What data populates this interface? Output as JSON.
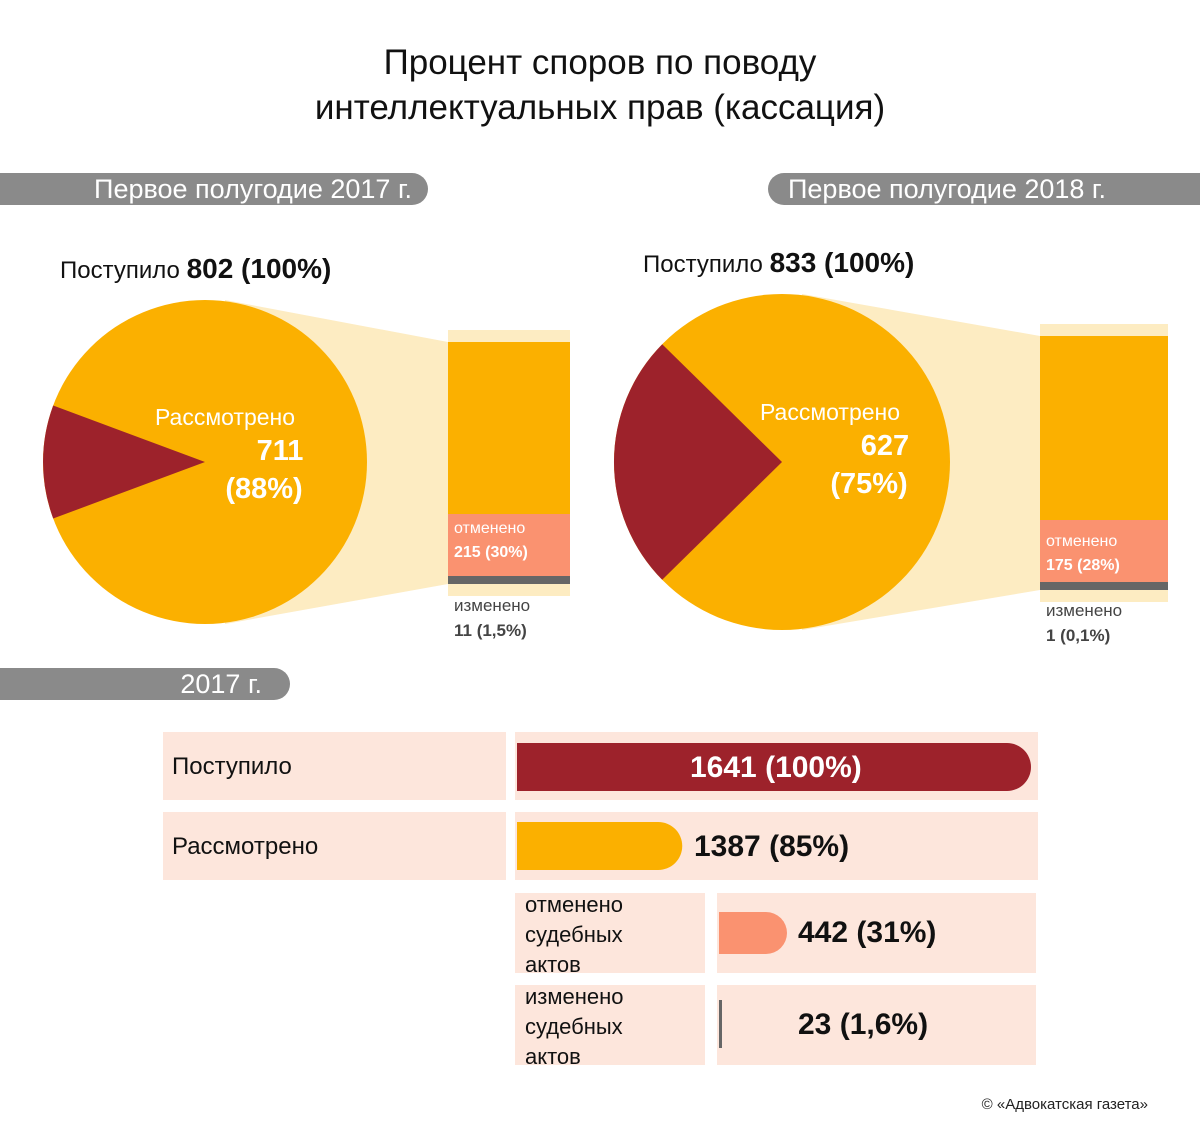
{
  "title": {
    "line1": "Процент споров по поводу",
    "line2": "интеллектуальных прав (кассация)"
  },
  "panels": [
    {
      "period": "Первое полугодие 2017 г.",
      "received_label": "Поступило",
      "received_value": "802 (100%)",
      "reviewed_label": "Рассмотрено",
      "reviewed_value": "711",
      "reviewed_pct": "(88%)",
      "cancelled_label": "отменено",
      "cancelled_value": "215 (30%)",
      "changed_label": "изменено",
      "changed_value": "11 (1,5%)"
    },
    {
      "period": "Первое полугодие 2018 г.",
      "received_label": "Поступило",
      "received_value": "833 (100%)",
      "reviewed_label": "Рассмотрено",
      "reviewed_value": "627",
      "reviewed_pct": "(75%)",
      "cancelled_label": "отменено",
      "cancelled_value": "175 (28%)",
      "changed_label": "изменено",
      "changed_value": "1 (0,1%)"
    }
  ],
  "year_section": {
    "year_label": "2017 г.",
    "rows": [
      {
        "label": "Поступило",
        "value": "1641 (100%)"
      },
      {
        "label": "Рассмотрено",
        "value": "1387 (85%)"
      },
      {
        "label": "отменено судебных актов",
        "value": "442 (31%)"
      },
      {
        "label": "изменено судебных актов",
        "value": "23 (1,6%)"
      }
    ]
  },
  "credit": "© «Адвокатская газета»",
  "colors": {
    "pie_main": "#fbb000",
    "pie_slice": "#9d222b",
    "connector": "#fdecc2",
    "cancelled": "#fa9270",
    "changed": "#666666",
    "pill": "#8a8a8a",
    "row_bg": "#fde6dc"
  },
  "chart_data": [
    {
      "type": "pie",
      "title": "Первое полугодие 2017 г.",
      "total": 802,
      "slices": [
        {
          "label": "Рассмотрено",
          "value": 711,
          "pct": 88
        },
        {
          "label": "",
          "value": 91,
          "pct": 12
        }
      ],
      "breakdown_of": "Рассмотрено",
      "breakdown": [
        {
          "label": "отменено",
          "value": 215,
          "pct": 30
        },
        {
          "label": "изменено",
          "value": 11,
          "pct": 1.5
        }
      ]
    },
    {
      "type": "pie",
      "title": "Первое полугодие 2018 г.",
      "total": 833,
      "slices": [
        {
          "label": "Рассмотрено",
          "value": 627,
          "pct": 75
        },
        {
          "label": "",
          "value": 206,
          "pct": 25
        }
      ],
      "breakdown_of": "Рассмотрено",
      "breakdown": [
        {
          "label": "отменено",
          "value": 175,
          "pct": 28
        },
        {
          "label": "изменено",
          "value": 1,
          "pct": 0.1
        }
      ]
    },
    {
      "type": "bar",
      "title": "2017 г.",
      "categories": [
        "Поступило",
        "Рассмотрено",
        "отменено судебных актов",
        "изменено судебных актов"
      ],
      "values": [
        1641,
        1387,
        442,
        23
      ],
      "percents": [
        100,
        85,
        31,
        1.6
      ]
    }
  ]
}
